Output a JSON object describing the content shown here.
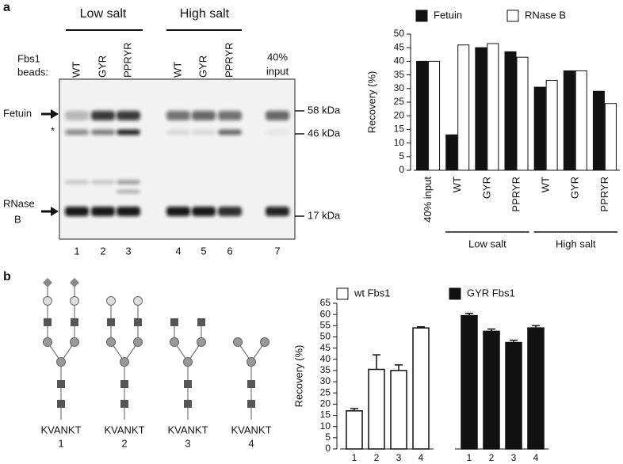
{
  "panel_labels": [
    "a",
    "b"
  ],
  "gel": {
    "groups": [
      "Low salt",
      "High salt"
    ],
    "beads_label": [
      "Fbs1",
      "beads:"
    ],
    "lanes": [
      "WT",
      "GYR",
      "PPRYR",
      "WT",
      "GYR",
      "PPRYR"
    ],
    "input_label": [
      "40%",
      "input"
    ],
    "fetuin_label": "Fetuin",
    "star": "*",
    "rnase_label": [
      "RNase",
      "B"
    ],
    "markers": [
      "58 kDa",
      "46 kDa",
      "17 kDa"
    ],
    "lane_numbers": [
      "1",
      "2",
      "3",
      "4",
      "5",
      "6",
      "7"
    ]
  },
  "glycans": {
    "peptide": "KVANKT",
    "numbers": [
      "1",
      "2",
      "3",
      "4"
    ]
  },
  "chart_data": [
    {
      "type": "bar",
      "y_label": "Recovery (%)",
      "categories": [
        "40% input",
        "WT",
        "GYR",
        "PPRYR",
        "WT",
        "GYR",
        "PPRYR"
      ],
      "groups": [
        "Low salt",
        "High salt"
      ],
      "series": [
        {
          "name": "Fetuin",
          "color": "#111111",
          "values": [
            40,
            13,
            45,
            43.5,
            30.5,
            36.5,
            29
          ]
        },
        {
          "name": "RNase B",
          "color": "#ffffff",
          "values": [
            40,
            46,
            46.5,
            41.5,
            33,
            36.5,
            24.5
          ]
        }
      ],
      "ylim": [
        0,
        50
      ],
      "yticks": [
        0,
        5,
        10,
        15,
        20,
        25,
        30,
        35,
        40,
        45,
        50
      ],
      "legend": "top"
    },
    {
      "type": "bar",
      "y_label": "Recovery (%)",
      "categories": [
        "1",
        "2",
        "3",
        "4"
      ],
      "series": [
        {
          "name": "wt Fbs1",
          "color": "#ffffff",
          "values": [
            17,
            35.5,
            35,
            54
          ],
          "errors": [
            1,
            6.5,
            2.5,
            0.5
          ]
        },
        {
          "name": "GYR Fbs1",
          "color": "#111111",
          "values": [
            59.5,
            52.5,
            47.5,
            54
          ],
          "errors": [
            1,
            1,
            1,
            1
          ]
        }
      ],
      "ylim": [
        0,
        65
      ],
      "yticks": [
        0,
        5,
        10,
        15,
        20,
        25,
        30,
        35,
        40,
        45,
        50,
        55,
        60,
        65
      ],
      "legend": "top"
    }
  ]
}
